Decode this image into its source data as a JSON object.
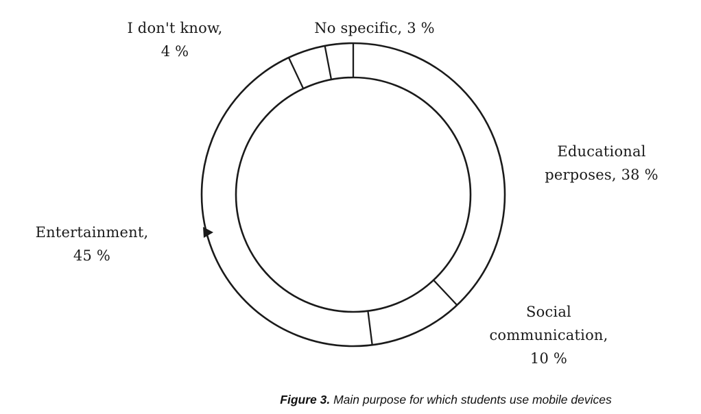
{
  "chart_data": {
    "type": "pie",
    "variant": "donut",
    "categories": [
      "Educational perposes",
      "Social communication",
      "Entertainment",
      "I don't know",
      "No specific"
    ],
    "values": [
      38,
      10,
      45,
      4,
      3
    ],
    "unit": "%",
    "start_angle_deg": 0,
    "direction": "clockwise",
    "title": "Figure 3. Main purpose for which students use mobile devices",
    "legend_position": "labels-around-chart",
    "grid": false,
    "stroke_color": "#1a1a1a",
    "fill_color": "#ffffff"
  },
  "labels": {
    "no_specific": [
      "No specific, 3 %"
    ],
    "dont_know": [
      "I don't know,",
      "4 %"
    ],
    "educational": [
      "Educational",
      "perposes, 38 %"
    ],
    "social": [
      "Social",
      "communication,",
      "10 %"
    ],
    "entertainment": [
      "Entertainment,",
      "45 %"
    ]
  },
  "caption": {
    "figure_label": "Figure 3.",
    "text": "Main purpose for which students use mobile devices"
  }
}
